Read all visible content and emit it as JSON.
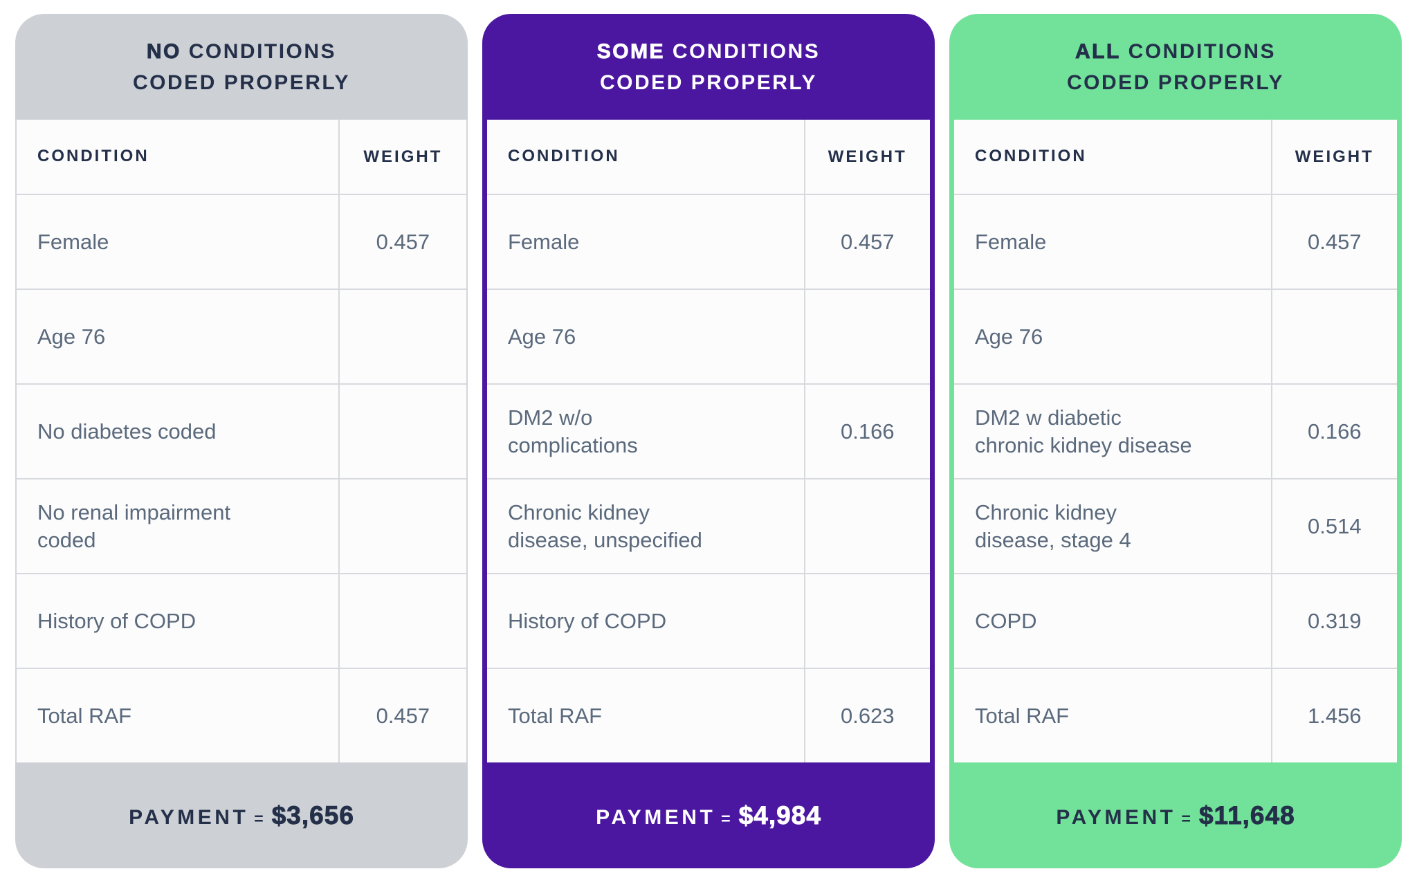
{
  "cards": [
    {
      "theme": {
        "accent": "#cdd0d5",
        "border_color": "#d3d6da",
        "title_color": "#243049",
        "payment_color": "#243049"
      },
      "title": {
        "emphasis": "NO",
        "rest": "CONDITIONS",
        "line2": "CODED PROPERLY"
      },
      "table": {
        "condition_header": "CONDITION",
        "weight_header": "WEIGHT",
        "rows": [
          {
            "condition": "Female",
            "weight": "0.457"
          },
          {
            "condition": "Age 76",
            "weight": ""
          },
          {
            "condition": "No diabetes coded",
            "weight": ""
          },
          {
            "condition": "No renal impairment\ncoded",
            "weight": ""
          },
          {
            "condition": "History of COPD",
            "weight": ""
          },
          {
            "condition": "Total RAF",
            "weight": "0.457"
          }
        ]
      },
      "payment": {
        "label": "PAYMENT",
        "equals": "=",
        "amount": "$3,656"
      }
    },
    {
      "theme": {
        "accent": "#4b17a0",
        "border_color": "#4b17a0",
        "title_color": "#ffffff",
        "payment_color": "#ffffff"
      },
      "title": {
        "emphasis": "SOME",
        "rest": "CONDITIONS",
        "line2": "CODED PROPERLY"
      },
      "table": {
        "condition_header": "CONDITION",
        "weight_header": "WEIGHT",
        "rows": [
          {
            "condition": "Female",
            "weight": "0.457"
          },
          {
            "condition": "Age 76",
            "weight": ""
          },
          {
            "condition": "DM2 w/o\ncomplications",
            "weight": "0.166"
          },
          {
            "condition": "Chronic kidney\ndisease, unspecified",
            "weight": ""
          },
          {
            "condition": "History of COPD",
            "weight": ""
          },
          {
            "condition": "Total RAF",
            "weight": "0.623"
          }
        ]
      },
      "payment": {
        "label": "PAYMENT",
        "equals": "=",
        "amount": "$4,984"
      }
    },
    {
      "theme": {
        "accent": "#72e29b",
        "border_color": "#72e29b",
        "title_color": "#243049",
        "payment_color": "#243049"
      },
      "title": {
        "emphasis": "ALL",
        "rest": "CONDITIONS",
        "line2": "CODED PROPERLY"
      },
      "table": {
        "condition_header": "CONDITION",
        "weight_header": "WEIGHT",
        "rows": [
          {
            "condition": "Female",
            "weight": "0.457"
          },
          {
            "condition": "Age 76",
            "weight": ""
          },
          {
            "condition": "DM2 w diabetic\nchronic kidney disease",
            "weight": "0.166"
          },
          {
            "condition": "Chronic kidney\ndisease, stage 4",
            "weight": "0.514"
          },
          {
            "condition": "COPD",
            "weight": "0.319"
          },
          {
            "condition": "Total RAF",
            "weight": "1.456"
          }
        ]
      },
      "payment": {
        "label": "PAYMENT",
        "equals": "=",
        "amount": "$11,648"
      }
    }
  ],
  "chart_data": [
    {
      "type": "table",
      "title": "NO CONDITIONS CODED PROPERLY",
      "columns": [
        "CONDITION",
        "WEIGHT"
      ],
      "rows": [
        [
          "Female",
          "0.457"
        ],
        [
          "Age 76",
          ""
        ],
        [
          "No diabetes coded",
          ""
        ],
        [
          "No renal impairment coded",
          ""
        ],
        [
          "History of COPD",
          ""
        ],
        [
          "Total RAF",
          "0.457"
        ]
      ],
      "payment": "$3,656"
    },
    {
      "type": "table",
      "title": "SOME CONDITIONS CODED PROPERLY",
      "columns": [
        "CONDITION",
        "WEIGHT"
      ],
      "rows": [
        [
          "Female",
          "0.457"
        ],
        [
          "Age 76",
          ""
        ],
        [
          "DM2 w/o complications",
          "0.166"
        ],
        [
          "Chronic kidney disease, unspecified",
          ""
        ],
        [
          "History of COPD",
          ""
        ],
        [
          "Total RAF",
          "0.623"
        ]
      ],
      "payment": "$4,984"
    },
    {
      "type": "table",
      "title": "ALL CONDITIONS CODED PROPERLY",
      "columns": [
        "CONDITION",
        "WEIGHT"
      ],
      "rows": [
        [
          "Female",
          "0.457"
        ],
        [
          "Age 76",
          ""
        ],
        [
          "DM2 w diabetic chronic kidney disease",
          "0.166"
        ],
        [
          "Chronic kidney disease, stage 4",
          "0.514"
        ],
        [
          "COPD",
          "0.319"
        ],
        [
          "Total RAF",
          "1.456"
        ]
      ],
      "payment": "$11,648"
    }
  ]
}
